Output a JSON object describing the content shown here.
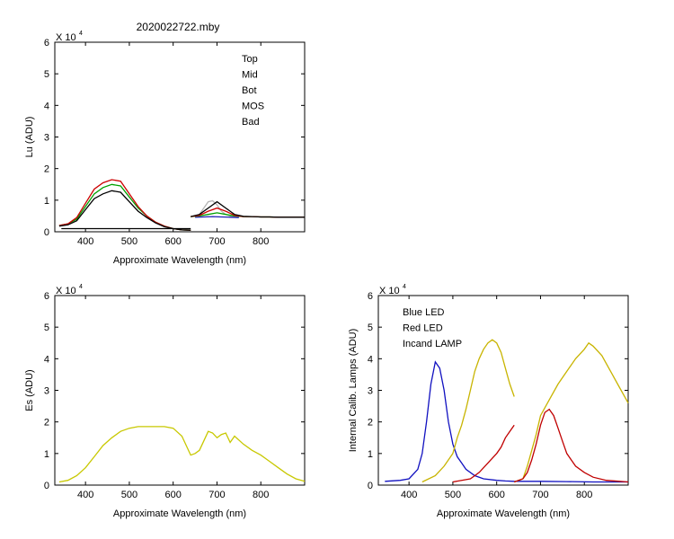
{
  "figure_title": "2020022722.mby",
  "colors": {
    "top": "#000000",
    "mid": "#cc0000",
    "bot": "#00a000",
    "mos": "#1f1fb4",
    "bad": "#b4b4b4",
    "es": "#c8c800",
    "blue_led": "#1010c0",
    "red_led": "#c00000",
    "incand": "#c8b400"
  },
  "chart_data": [
    {
      "id": "lu",
      "type": "line",
      "title": "2020022722.mby",
      "xlabel": "Approximate Wavelength (nm)",
      "ylabel": "Lu (ADU)",
      "scale_label": "X 10",
      "scale_exp": "4",
      "xlim": [
        330,
        900
      ],
      "ylim": [
        0,
        6
      ],
      "xticks": [
        400,
        500,
        600,
        700,
        800
      ],
      "yticks": [
        0,
        1,
        2,
        3,
        4,
        5,
        6
      ],
      "legend": [
        "Top",
        "Mid",
        "Bot",
        "MOS",
        "Bad"
      ],
      "legend_position": "top-right",
      "series": [
        {
          "name": "Bad",
          "color_key": "bad",
          "x": [
            650,
            660,
            670,
            680,
            690,
            700,
            710,
            720,
            730,
            740,
            750
          ],
          "y": [
            0.48,
            0.55,
            0.75,
            0.95,
            0.98,
            0.85,
            0.65,
            0.55,
            0.5,
            0.48,
            0.47
          ]
        },
        {
          "name": "MOS",
          "color_key": "mos",
          "x": [
            650,
            670,
            690,
            710,
            730,
            750
          ],
          "y": [
            0.46,
            0.47,
            0.48,
            0.47,
            0.46,
            0.45
          ]
        },
        {
          "name": "Bot",
          "color_key": "bot",
          "x": [
            340,
            360,
            380,
            400,
            420,
            440,
            460,
            480,
            500,
            520,
            540,
            560,
            580,
            600,
            620,
            640
          ],
          "y": [
            0.2,
            0.25,
            0.4,
            0.8,
            1.2,
            1.4,
            1.5,
            1.45,
            1.1,
            0.75,
            0.5,
            0.3,
            0.18,
            0.1,
            0.06,
            0.05
          ]
        },
        {
          "name": "Bot",
          "color_key": "bot",
          "x": [
            640,
            660,
            680,
            700,
            720,
            740,
            760,
            780,
            800,
            820,
            840,
            860,
            880,
            900
          ],
          "y": [
            0.48,
            0.5,
            0.55,
            0.6,
            0.55,
            0.5,
            0.48,
            0.48,
            0.47,
            0.47,
            0.46,
            0.46,
            0.46,
            0.46
          ]
        },
        {
          "name": "Mid",
          "color_key": "mid",
          "x": [
            340,
            360,
            380,
            400,
            420,
            440,
            460,
            480,
            500,
            520,
            540,
            560,
            580,
            600,
            620,
            640
          ],
          "y": [
            0.2,
            0.25,
            0.45,
            0.9,
            1.35,
            1.55,
            1.65,
            1.6,
            1.2,
            0.8,
            0.5,
            0.3,
            0.18,
            0.1,
            0.06,
            0.05
          ]
        },
        {
          "name": "Mid",
          "color_key": "mid",
          "x": [
            640,
            660,
            680,
            700,
            720,
            740,
            760,
            780,
            800,
            820,
            840,
            860,
            880,
            900
          ],
          "y": [
            0.48,
            0.52,
            0.65,
            0.75,
            0.65,
            0.52,
            0.48,
            0.48,
            0.47,
            0.47,
            0.46,
            0.46,
            0.46,
            0.46
          ]
        },
        {
          "name": "Top",
          "color_key": "top",
          "x": [
            340,
            360,
            380,
            400,
            420,
            440,
            460,
            480,
            500,
            520,
            540,
            560,
            580,
            600,
            620,
            640
          ],
          "y": [
            0.18,
            0.22,
            0.35,
            0.7,
            1.05,
            1.2,
            1.3,
            1.25,
            0.95,
            0.65,
            0.45,
            0.28,
            0.16,
            0.1,
            0.06,
            0.05
          ]
        },
        {
          "name": "Top",
          "color_key": "top",
          "x": [
            640,
            660,
            680,
            700,
            720,
            740,
            760,
            780,
            800,
            820,
            840,
            860,
            880,
            900
          ],
          "y": [
            0.48,
            0.55,
            0.75,
            0.95,
            0.75,
            0.55,
            0.49,
            0.48,
            0.47,
            0.47,
            0.46,
            0.46,
            0.46,
            0.46
          ]
        },
        {
          "name": "Top",
          "color_key": "top",
          "x": [
            345,
            640
          ],
          "y": [
            0.1,
            0.1
          ]
        }
      ]
    },
    {
      "id": "es",
      "type": "line",
      "xlabel": "Approximate Wavelength (nm)",
      "ylabel": "Es (ADU)",
      "scale_label": "X 10",
      "scale_exp": "4",
      "xlim": [
        330,
        900
      ],
      "ylim": [
        0,
        6
      ],
      "xticks": [
        400,
        500,
        600,
        700,
        800
      ],
      "yticks": [
        0,
        1,
        2,
        3,
        4,
        5,
        6
      ],
      "series": [
        {
          "name": "Es",
          "color_key": "es",
          "x": [
            340,
            360,
            380,
            400,
            420,
            440,
            460,
            480,
            500,
            520,
            540,
            560,
            580,
            600,
            620,
            640,
            650,
            660,
            670,
            680,
            690,
            700,
            710,
            720,
            730,
            740,
            760,
            780,
            800,
            820,
            840,
            860,
            880,
            900
          ],
          "y": [
            0.1,
            0.15,
            0.3,
            0.55,
            0.9,
            1.25,
            1.5,
            1.7,
            1.8,
            1.85,
            1.85,
            1.85,
            1.85,
            1.8,
            1.55,
            0.95,
            1.0,
            1.1,
            1.4,
            1.7,
            1.65,
            1.5,
            1.6,
            1.65,
            1.35,
            1.55,
            1.3,
            1.1,
            0.95,
            0.75,
            0.55,
            0.35,
            0.2,
            0.12
          ]
        }
      ]
    },
    {
      "id": "lamps",
      "type": "line",
      "xlabel": "Approximate Wavelength (nm)",
      "ylabel": "Internal Calib. Lamps (ADU)",
      "scale_label": "X 10",
      "scale_exp": "4",
      "xlim": [
        330,
        900
      ],
      "ylim": [
        0,
        6
      ],
      "xticks": [
        400,
        500,
        600,
        700,
        800
      ],
      "yticks": [
        0,
        1,
        2,
        3,
        4,
        5,
        6
      ],
      "legend": [
        "Blue LED",
        "Red LED",
        "Incand LAMP"
      ],
      "legend_position": "top-left",
      "series": [
        {
          "name": "Blue LED",
          "color_key": "blue_led",
          "x": [
            345,
            380,
            400,
            420,
            430,
            440,
            450,
            460,
            470,
            480,
            490,
            500,
            510,
            520,
            530,
            550,
            570,
            600,
            620,
            640
          ],
          "y": [
            0.12,
            0.15,
            0.2,
            0.5,
            1.0,
            2.0,
            3.2,
            3.9,
            3.7,
            3.0,
            2.0,
            1.3,
            0.9,
            0.7,
            0.5,
            0.3,
            0.2,
            0.15,
            0.13,
            0.12
          ]
        },
        {
          "name": "Blue LED",
          "color_key": "blue_led",
          "x": [
            640,
            700,
            760,
            820,
            900
          ],
          "y": [
            0.12,
            0.12,
            0.11,
            0.1,
            0.1
          ]
        },
        {
          "name": "Incand LAMP",
          "color_key": "incand",
          "x": [
            430,
            460,
            480,
            500,
            510,
            520,
            530,
            540,
            550,
            560,
            570,
            580,
            590,
            600,
            610,
            620,
            630,
            640
          ],
          "y": [
            0.1,
            0.3,
            0.6,
            1.0,
            1.5,
            1.9,
            2.4,
            3.0,
            3.6,
            4.0,
            4.3,
            4.5,
            4.6,
            4.5,
            4.2,
            3.7,
            3.2,
            2.8
          ]
        },
        {
          "name": "Incand LAMP",
          "color_key": "incand",
          "x": [
            640,
            660,
            670,
            680,
            690,
            700,
            720,
            740,
            760,
            780,
            800,
            810,
            820,
            840,
            860,
            880,
            900
          ],
          "y": [
            0.1,
            0.2,
            0.6,
            1.1,
            1.6,
            2.2,
            2.7,
            3.2,
            3.6,
            4.0,
            4.3,
            4.5,
            4.4,
            4.1,
            3.6,
            3.1,
            2.6
          ]
        },
        {
          "name": "Red LED",
          "color_key": "red_led",
          "x": [
            500,
            540,
            560,
            580,
            600,
            610,
            620,
            630,
            640
          ],
          "y": [
            0.1,
            0.2,
            0.4,
            0.7,
            1.0,
            1.2,
            1.5,
            1.7,
            1.9
          ]
        },
        {
          "name": "Red LED",
          "color_key": "red_led",
          "x": [
            640,
            660,
            670,
            680,
            690,
            700,
            710,
            720,
            730,
            740,
            750,
            760,
            780,
            800,
            820,
            850,
            900
          ],
          "y": [
            0.1,
            0.2,
            0.4,
            0.8,
            1.3,
            1.9,
            2.3,
            2.4,
            2.2,
            1.8,
            1.4,
            1.0,
            0.6,
            0.4,
            0.25,
            0.15,
            0.1
          ]
        }
      ]
    }
  ]
}
